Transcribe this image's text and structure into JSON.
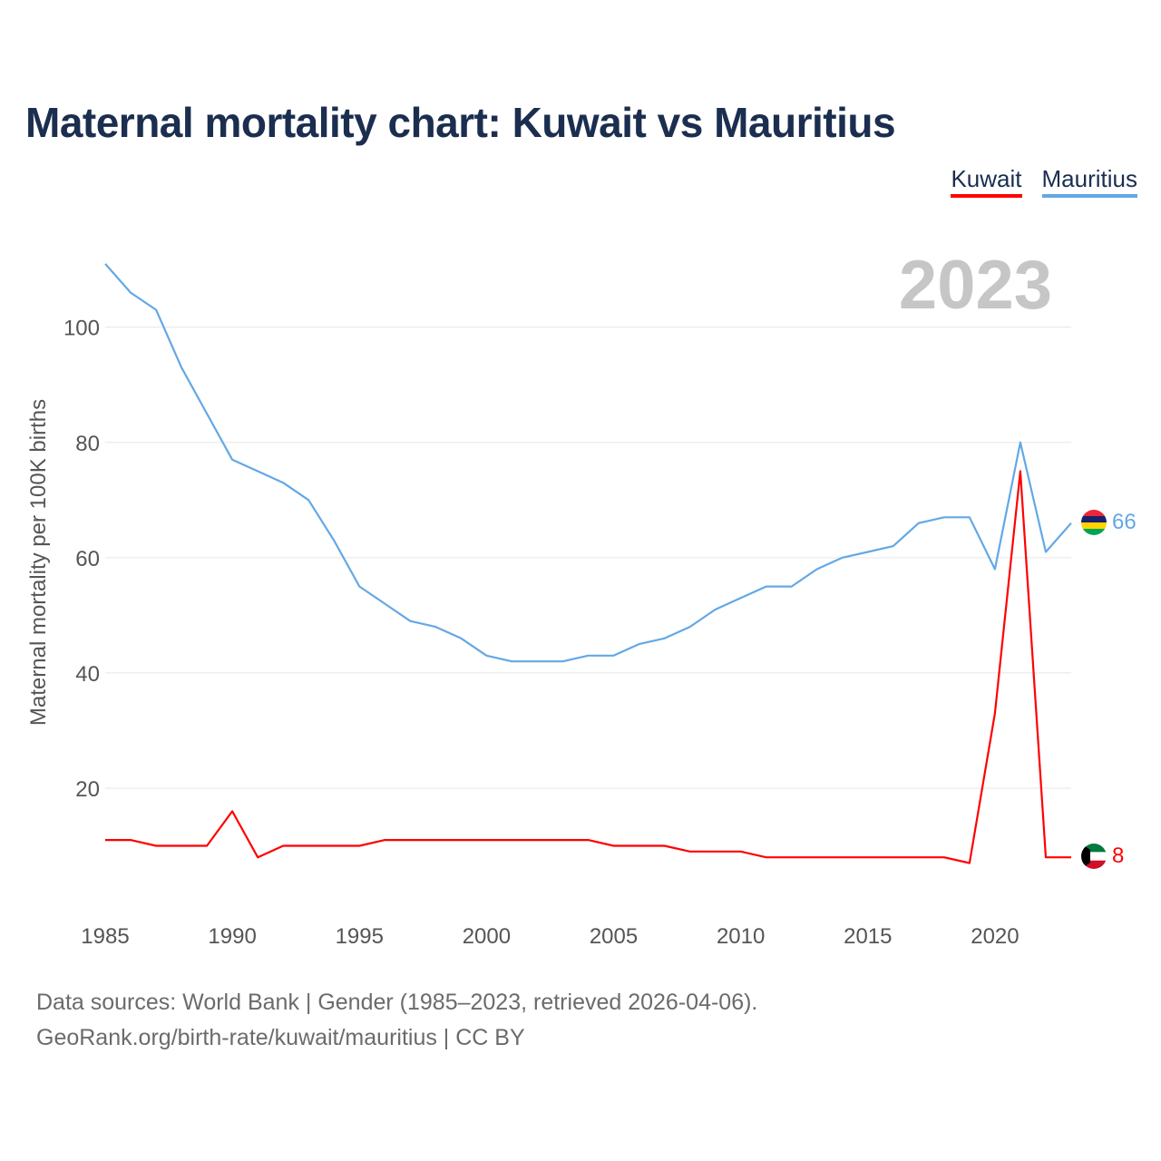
{
  "title": "Maternal mortality chart: Kuwait vs Mauritius",
  "legend": [
    {
      "name": "Kuwait",
      "color": "#ff0000"
    },
    {
      "name": "Mauritius",
      "color": "#63a8e5"
    }
  ],
  "chart_data": {
    "type": "line",
    "year_label": "2023",
    "ylabel": "Maternal mortality per 100K births",
    "xlim": [
      1985,
      2023
    ],
    "ylim": [
      0,
      114
    ],
    "x_ticks": [
      1985,
      1990,
      1995,
      2000,
      2005,
      2010,
      2015,
      2020
    ],
    "y_ticks": [
      20,
      40,
      60,
      80,
      100
    ],
    "x": [
      1985,
      1986,
      1987,
      1988,
      1989,
      1990,
      1991,
      1992,
      1993,
      1994,
      1995,
      1996,
      1997,
      1998,
      1999,
      2000,
      2001,
      2002,
      2003,
      2004,
      2005,
      2006,
      2007,
      2008,
      2009,
      2010,
      2011,
      2012,
      2013,
      2014,
      2015,
      2016,
      2017,
      2018,
      2019,
      2020,
      2021,
      2022,
      2023
    ],
    "series": [
      {
        "name": "Kuwait",
        "color": "#ff0000",
        "end_label": "8",
        "values": [
          11,
          11,
          10,
          10,
          10,
          16,
          8,
          10,
          10,
          10,
          10,
          11,
          11,
          11,
          11,
          11,
          11,
          11,
          11,
          11,
          10,
          10,
          10,
          9,
          9,
          9,
          8,
          8,
          8,
          8,
          8,
          8,
          8,
          8,
          7,
          33,
          75,
          8,
          8
        ]
      },
      {
        "name": "Mauritius",
        "color": "#63a8e5",
        "end_label": "66",
        "values": [
          111,
          106,
          103,
          93,
          85,
          77,
          75,
          73,
          70,
          63,
          55,
          52,
          49,
          48,
          46,
          43,
          42,
          42,
          42,
          43,
          43,
          45,
          46,
          48,
          51,
          53,
          55,
          55,
          58,
          60,
          61,
          62,
          66,
          67,
          67,
          58,
          80,
          61,
          66
        ]
      }
    ]
  },
  "footer": {
    "source": "Data sources: World Bank | Gender (1985–2023, retrieved 2026-04-06).",
    "credit": "GeoRank.org/birth-rate/kuwait/mauritius | CC BY"
  }
}
